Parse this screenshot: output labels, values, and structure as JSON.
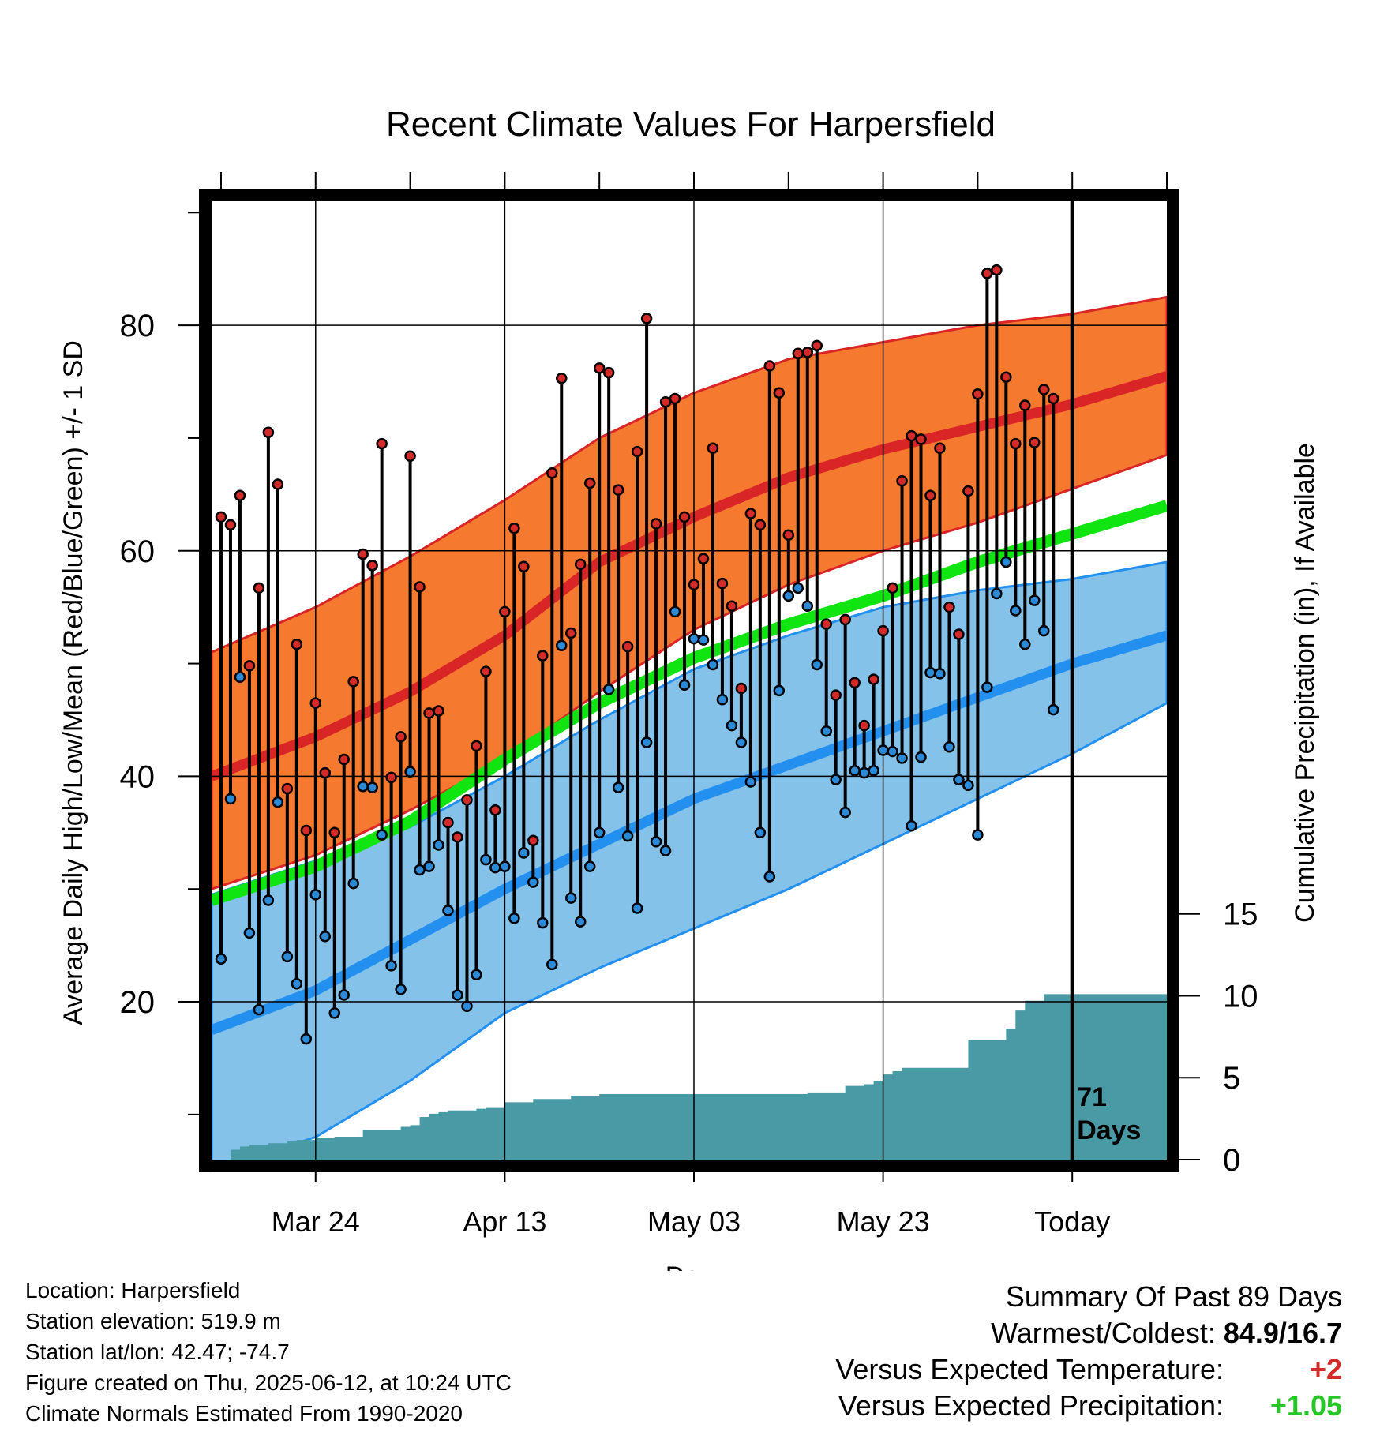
{
  "colors": {
    "high_band": "#f5792f",
    "high_mean": "#d92525",
    "low_band": "#84c2ea",
    "low_mean": "#2390f0",
    "mean": "#11e511",
    "precip": "#4a9aa5",
    "high_dot": "#d42a28",
    "low_dot": "#2a8ad8"
  },
  "chart_data": {
    "type": "line",
    "title": "Recent Climate Values For Harpersfield",
    "xlabel": "Day",
    "ylabel": "Average Daily High/Low/Mean (Red/Blue/Green) +/- 1 SD",
    "y2label": "Cumulative Precipitation (in), If Available",
    "xlim": [
      -11,
      90
    ],
    "ylim": [
      6,
      91
    ],
    "y2lim": [
      0,
      58.5
    ],
    "x_ticks": [
      {
        "day": 0,
        "label": "Mar 24"
      },
      {
        "day": 20,
        "label": "Apr 13"
      },
      {
        "day": 40,
        "label": "May 03"
      },
      {
        "day": 60,
        "label": "May 23"
      },
      {
        "day": 80,
        "label": "Today"
      }
    ],
    "y_ticks": [
      20,
      40,
      60,
      80
    ],
    "y2_ticks": [
      0,
      5,
      10,
      15
    ],
    "today_marker": {
      "day": 80,
      "label_line1": "71",
      "label_line2": "Days"
    },
    "normals": {
      "days": [
        -11,
        0,
        10,
        20,
        30,
        40,
        50,
        60,
        70,
        80,
        90
      ],
      "high_mean": [
        40,
        43.5,
        47.5,
        52.5,
        59,
        63,
        66.5,
        69,
        71,
        73,
        75.5
      ],
      "high_upper": [
        51,
        55,
        59.5,
        64.5,
        70,
        74,
        77,
        78.5,
        80,
        81,
        82.5
      ],
      "high_lower": [
        30,
        33,
        37,
        41.5,
        47.5,
        53,
        57,
        60,
        62.5,
        65.5,
        68.5
      ],
      "low_mean": [
        17.5,
        21,
        25.5,
        30,
        34,
        38,
        41,
        44,
        47,
        50,
        52.5
      ],
      "low_upper": [
        29.5,
        32.5,
        35.5,
        40,
        45,
        49.5,
        52.5,
        55,
        56.5,
        57.5,
        59
      ],
      "low_lower": [
        5,
        8,
        13,
        19,
        23,
        26.5,
        30,
        34,
        38,
        42,
        46.5
      ],
      "mean": [
        29,
        32,
        36,
        41.5,
        46.5,
        50.5,
        53.5,
        56,
        59,
        61.5,
        64
      ]
    },
    "observations": {
      "days": [
        -10,
        -9,
        -8,
        -7,
        -6,
        -5,
        -4,
        -3,
        -2,
        -1,
        0,
        1,
        2,
        3,
        4,
        5,
        6,
        7,
        8,
        9,
        10,
        11,
        12,
        13,
        14,
        15,
        16,
        17,
        18,
        19,
        20,
        21,
        22,
        23,
        24,
        25,
        26,
        27,
        28,
        29,
        30,
        31,
        32,
        33,
        34,
        35,
        36,
        37,
        38,
        39,
        40,
        41,
        42,
        43,
        44,
        45,
        46,
        47,
        48,
        49,
        50,
        51,
        52,
        53,
        54,
        55,
        56,
        57,
        58,
        59,
        60,
        61,
        62,
        63,
        64,
        65,
        66,
        67,
        68,
        69,
        70,
        71,
        72,
        73,
        74,
        75,
        76,
        77,
        78,
        79
      ],
      "high": [
        63,
        62.3,
        64.9,
        49.8,
        56.7,
        70.5,
        65.9,
        38.9,
        51.7,
        35.2,
        46.5,
        40.3,
        35,
        41.5,
        48.4,
        59.7,
        58.7,
        69.5,
        39.9,
        43.5,
        68.4,
        56.8,
        45.6,
        45.8,
        35.9,
        34.6,
        37.9,
        42.7,
        49.3,
        37,
        54.6,
        62,
        58.6,
        34.3,
        50.7,
        66.9,
        75.3,
        52.7,
        58.8,
        66,
        76.2,
        75.8,
        65.4,
        51.5,
        68.8,
        80.6,
        62.4,
        73.2,
        73.5,
        63,
        57,
        59.3,
        69.1,
        57.1,
        55.1,
        47.8,
        63.3,
        62.3,
        76.4,
        74,
        61.4,
        77.5,
        77.6,
        78.2,
        53.5,
        47.2,
        53.9,
        48.3,
        44.5,
        48.6,
        52.9,
        56.7,
        66.2,
        70.2,
        69.9,
        64.9,
        69.1,
        55,
        52.6,
        65.3,
        73.9,
        84.6,
        84.9,
        75.4,
        69.5,
        72.9,
        69.6,
        74.3,
        73.5,
        null
      ],
      "low": [
        23.8,
        38,
        48.8,
        26.1,
        19.3,
        29,
        37.7,
        24,
        21.6,
        16.7,
        29.5,
        25.8,
        19,
        20.6,
        30.5,
        39.1,
        39,
        34.8,
        23.2,
        21.1,
        40.4,
        31.7,
        32,
        33.9,
        28.1,
        20.6,
        19.6,
        22.4,
        32.6,
        31.9,
        32,
        27.4,
        33.2,
        30.6,
        27,
        23.3,
        51.6,
        29.2,
        27.1,
        32,
        35,
        47.7,
        39,
        34.7,
        28.3,
        43,
        34.2,
        33.4,
        54.6,
        48.1,
        52.2,
        52.1,
        49.9,
        46.8,
        44.5,
        43,
        39.5,
        35,
        31.1,
        47.6,
        56,
        56.7,
        55.1,
        49.9,
        44,
        39.7,
        36.8,
        40.5,
        40.3,
        40.5,
        42.3,
        42.2,
        41.6,
        35.6,
        41.7,
        49.2,
        49.1,
        42.6,
        39.7,
        39.2,
        34.8,
        47.9,
        56.2,
        59,
        54.7,
        51.7,
        55.6,
        52.9,
        45.9,
        null
      ]
    },
    "precipitation": {
      "days": [
        -11,
        -10,
        -9,
        -8,
        -7,
        -6,
        -5,
        -4,
        -3,
        -2,
        -1,
        0,
        1,
        2,
        3,
        4,
        5,
        6,
        7,
        8,
        9,
        10,
        11,
        12,
        13,
        14,
        15,
        16,
        17,
        18,
        19,
        20,
        21,
        22,
        23,
        24,
        25,
        26,
        27,
        28,
        29,
        30,
        31,
        32,
        33,
        34,
        35,
        36,
        37,
        38,
        39,
        40,
        41,
        42,
        43,
        44,
        45,
        46,
        47,
        48,
        49,
        50,
        51,
        52,
        53,
        54,
        55,
        56,
        57,
        58,
        59,
        60,
        61,
        62,
        63,
        64,
        65,
        66,
        67,
        68,
        69,
        70,
        71,
        72,
        73,
        74,
        75,
        76,
        77,
        78,
        79,
        80,
        90
      ],
      "cumulative": [
        0,
        0,
        0.6,
        0.8,
        0.9,
        0.9,
        1,
        1,
        1.1,
        1.2,
        1.2,
        1.3,
        1.3,
        1.4,
        1.4,
        1.4,
        1.8,
        1.8,
        1.8,
        1.8,
        2,
        2.1,
        2.6,
        2.8,
        2.9,
        3,
        3,
        3,
        3.1,
        3.2,
        3.2,
        3.5,
        3.5,
        3.5,
        3.7,
        3.7,
        3.7,
        3.7,
        3.9,
        3.9,
        3.9,
        4,
        4,
        4,
        4,
        4,
        4,
        4,
        4,
        4,
        4,
        4,
        4,
        4,
        4,
        4,
        4,
        4,
        4,
        4,
        4,
        4,
        4,
        4.1,
        4.1,
        4.1,
        4.1,
        4.5,
        4.5,
        4.6,
        4.8,
        5.2,
        5.4,
        5.6,
        5.6,
        5.6,
        5.6,
        5.6,
        5.6,
        5.6,
        7.3,
        7.3,
        7.3,
        7.3,
        8,
        9.1,
        9.7,
        9.7,
        10.1,
        10.1,
        10.1,
        10.1,
        10.1,
        10.1,
        10.1
      ]
    }
  },
  "footer": {
    "location": "Location: Harpersfield",
    "elevation": "Station elevation: 519.9 m",
    "latlon": "Station lat/lon: 42.47; -74.7",
    "created": "Figure created on Thu, 2025-06-12, at 10:24 UTC",
    "normals": "Climate Normals Estimated From 1990-2020"
  },
  "summary": {
    "heading": "Summary Of Past 89 Days",
    "warm_cold_label": "Warmest/Coldest:",
    "warm_cold_value": "84.9/16.7",
    "temp_label": "Versus Expected Temperature:",
    "temp_value": "+2",
    "precip_label": "Versus Expected Precipitation:",
    "precip_value": "+1.05"
  }
}
